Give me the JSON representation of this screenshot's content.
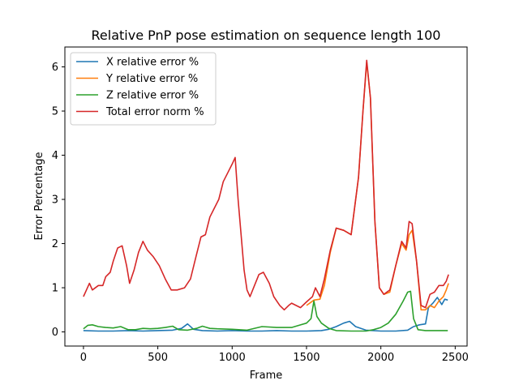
{
  "chart_data": {
    "type": "line",
    "title": "Relative PnP pose estimation on sequence length 100",
    "xlabel": "Frame",
    "ylabel": "Error Percentage",
    "xlim": [
      -125,
      2580
    ],
    "ylim": [
      -0.32,
      6.45
    ],
    "xticks": [
      0,
      500,
      1000,
      1500,
      2000,
      2500
    ],
    "yticks": [
      0,
      1,
      2,
      3,
      4,
      5,
      6
    ],
    "grid": false,
    "legend_position": "top-left",
    "series": [
      {
        "name": "X relative error %",
        "color": "#1f77b4",
        "points": [
          [
            0,
            0.03
          ],
          [
            100,
            0.02
          ],
          [
            200,
            0.02
          ],
          [
            300,
            0.03
          ],
          [
            400,
            0.02
          ],
          [
            500,
            0.03
          ],
          [
            600,
            0.04
          ],
          [
            660,
            0.08
          ],
          [
            700,
            0.18
          ],
          [
            740,
            0.06
          ],
          [
            800,
            0.03
          ],
          [
            900,
            0.02
          ],
          [
            1000,
            0.03
          ],
          [
            1100,
            0.02
          ],
          [
            1200,
            0.02
          ],
          [
            1300,
            0.03
          ],
          [
            1400,
            0.02
          ],
          [
            1500,
            0.02
          ],
          [
            1600,
            0.03
          ],
          [
            1650,
            0.06
          ],
          [
            1700,
            0.12
          ],
          [
            1750,
            0.2
          ],
          [
            1790,
            0.24
          ],
          [
            1830,
            0.12
          ],
          [
            1900,
            0.04
          ],
          [
            2000,
            0.02
          ],
          [
            2100,
            0.02
          ],
          [
            2180,
            0.04
          ],
          [
            2220,
            0.12
          ],
          [
            2260,
            0.16
          ],
          [
            2300,
            0.18
          ],
          [
            2320,
            0.55
          ],
          [
            2350,
            0.65
          ],
          [
            2380,
            0.78
          ],
          [
            2410,
            0.62
          ],
          [
            2430,
            0.74
          ],
          [
            2450,
            0.72
          ]
        ]
      },
      {
        "name": "Y relative error %",
        "color": "#ff7f0e",
        "points": [
          [
            1500,
            0.6
          ],
          [
            1550,
            0.72
          ],
          [
            1590,
            0.74
          ],
          [
            1620,
            1.05
          ],
          [
            1660,
            1.8
          ],
          [
            1700,
            2.35
          ],
          [
            1750,
            2.3
          ],
          [
            1800,
            2.2
          ],
          [
            1850,
            3.5
          ],
          [
            1880,
            5
          ],
          [
            1905,
            6.1
          ],
          [
            1930,
            5.3
          ],
          [
            1960,
            2.5
          ],
          [
            1990,
            1.0
          ],
          [
            2020,
            0.85
          ],
          [
            2060,
            0.9
          ],
          [
            2100,
            1.5
          ],
          [
            2140,
            2.0
          ],
          [
            2170,
            1.85
          ],
          [
            2190,
            2.2
          ],
          [
            2210,
            2.3
          ],
          [
            2240,
            1.6
          ],
          [
            2270,
            0.5
          ],
          [
            2300,
            0.5
          ],
          [
            2330,
            0.6
          ],
          [
            2360,
            0.55
          ],
          [
            2390,
            0.7
          ],
          [
            2420,
            0.8
          ],
          [
            2440,
            0.95
          ],
          [
            2455,
            1.1
          ]
        ]
      },
      {
        "name": "Z relative error %",
        "color": "#2ca02c",
        "points": [
          [
            0,
            0.07
          ],
          [
            30,
            0.15
          ],
          [
            60,
            0.16
          ],
          [
            100,
            0.12
          ],
          [
            150,
            0.1
          ],
          [
            200,
            0.09
          ],
          [
            250,
            0.12
          ],
          [
            300,
            0.05
          ],
          [
            350,
            0.05
          ],
          [
            400,
            0.08
          ],
          [
            450,
            0.07
          ],
          [
            500,
            0.08
          ],
          [
            550,
            0.1
          ],
          [
            600,
            0.13
          ],
          [
            640,
            0.05
          ],
          [
            700,
            0.04
          ],
          [
            760,
            0.08
          ],
          [
            800,
            0.13
          ],
          [
            850,
            0.08
          ],
          [
            900,
            0.07
          ],
          [
            1000,
            0.06
          ],
          [
            1100,
            0.04
          ],
          [
            1200,
            0.12
          ],
          [
            1300,
            0.1
          ],
          [
            1400,
            0.1
          ],
          [
            1450,
            0.15
          ],
          [
            1500,
            0.2
          ],
          [
            1530,
            0.3
          ],
          [
            1550,
            0.7
          ],
          [
            1570,
            0.35
          ],
          [
            1600,
            0.2
          ],
          [
            1650,
            0.08
          ],
          [
            1700,
            0.03
          ],
          [
            1800,
            0.02
          ],
          [
            1900,
            0.02
          ],
          [
            1950,
            0.05
          ],
          [
            2000,
            0.1
          ],
          [
            2050,
            0.2
          ],
          [
            2100,
            0.4
          ],
          [
            2150,
            0.7
          ],
          [
            2180,
            0.9
          ],
          [
            2200,
            0.92
          ],
          [
            2220,
            0.3
          ],
          [
            2250,
            0.05
          ],
          [
            2300,
            0.03
          ],
          [
            2400,
            0.03
          ],
          [
            2450,
            0.03
          ]
        ]
      },
      {
        "name": "Total error norm %",
        "color": "#d62728",
        "points": [
          [
            0,
            0.8
          ],
          [
            20,
            0.95
          ],
          [
            40,
            1.1
          ],
          [
            60,
            0.95
          ],
          [
            100,
            1.05
          ],
          [
            130,
            1.05
          ],
          [
            150,
            1.25
          ],
          [
            180,
            1.35
          ],
          [
            200,
            1.6
          ],
          [
            230,
            1.9
          ],
          [
            260,
            1.95
          ],
          [
            290,
            1.5
          ],
          [
            310,
            1.1
          ],
          [
            340,
            1.4
          ],
          [
            370,
            1.8
          ],
          [
            400,
            2.05
          ],
          [
            430,
            1.85
          ],
          [
            470,
            1.7
          ],
          [
            510,
            1.5
          ],
          [
            550,
            1.2
          ],
          [
            590,
            0.95
          ],
          [
            630,
            0.95
          ],
          [
            680,
            1.0
          ],
          [
            720,
            1.2
          ],
          [
            760,
            1.75
          ],
          [
            790,
            2.15
          ],
          [
            820,
            2.2
          ],
          [
            850,
            2.6
          ],
          [
            880,
            2.8
          ],
          [
            910,
            3.0
          ],
          [
            940,
            3.4
          ],
          [
            970,
            3.6
          ],
          [
            1000,
            3.8
          ],
          [
            1020,
            3.95
          ],
          [
            1040,
            3.0
          ],
          [
            1060,
            2.2
          ],
          [
            1080,
            1.4
          ],
          [
            1100,
            0.95
          ],
          [
            1120,
            0.8
          ],
          [
            1150,
            1.05
          ],
          [
            1180,
            1.3
          ],
          [
            1210,
            1.35
          ],
          [
            1250,
            1.1
          ],
          [
            1280,
            0.8
          ],
          [
            1320,
            0.6
          ],
          [
            1350,
            0.5
          ],
          [
            1380,
            0.6
          ],
          [
            1400,
            0.65
          ],
          [
            1430,
            0.6
          ],
          [
            1460,
            0.55
          ],
          [
            1500,
            0.68
          ],
          [
            1540,
            0.8
          ],
          [
            1560,
            1.0
          ],
          [
            1590,
            0.8
          ],
          [
            1620,
            1.2
          ],
          [
            1660,
            1.85
          ],
          [
            1700,
            2.35
          ],
          [
            1750,
            2.3
          ],
          [
            1800,
            2.2
          ],
          [
            1850,
            3.5
          ],
          [
            1880,
            5.0
          ],
          [
            1905,
            6.15
          ],
          [
            1930,
            5.3
          ],
          [
            1960,
            2.5
          ],
          [
            1990,
            1.0
          ],
          [
            2020,
            0.85
          ],
          [
            2060,
            0.95
          ],
          [
            2100,
            1.5
          ],
          [
            2140,
            2.05
          ],
          [
            2170,
            1.9
          ],
          [
            2190,
            2.5
          ],
          [
            2210,
            2.45
          ],
          [
            2240,
            1.6
          ],
          [
            2270,
            0.6
          ],
          [
            2300,
            0.55
          ],
          [
            2330,
            0.85
          ],
          [
            2360,
            0.9
          ],
          [
            2390,
            1.05
          ],
          [
            2420,
            1.05
          ],
          [
            2440,
            1.15
          ],
          [
            2455,
            1.3
          ]
        ]
      }
    ]
  }
}
